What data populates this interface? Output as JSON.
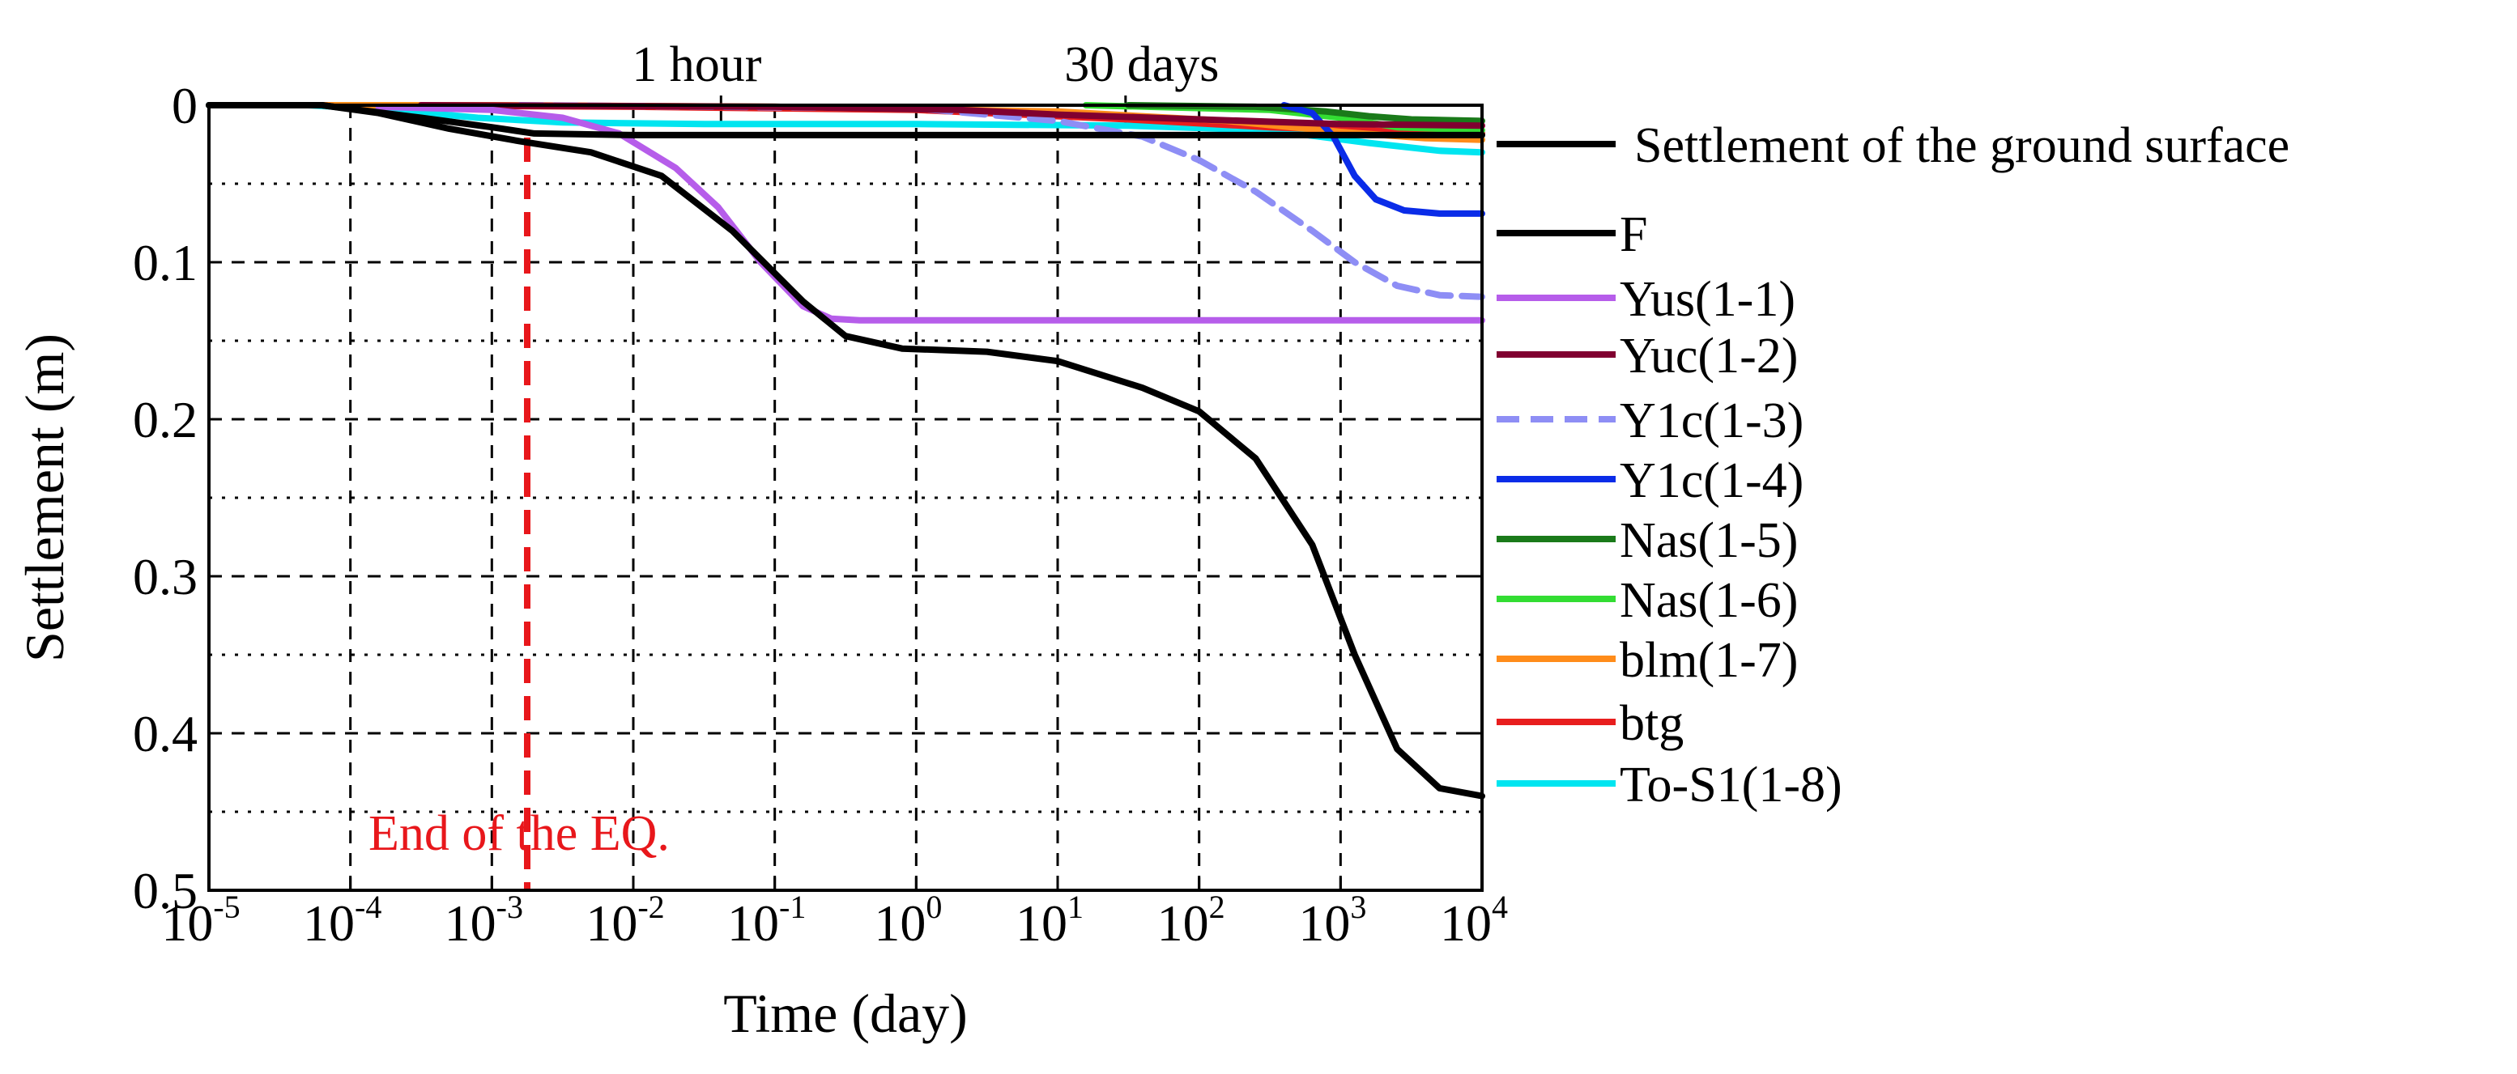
{
  "chart_data": {
    "type": "line",
    "title": "",
    "xlabel": "Time (day)",
    "ylabel": "Settlement (m)",
    "x_scale": "log",
    "x_ticks": [
      {
        "base": "10",
        "exp": "-5"
      },
      {
        "base": "10",
        "exp": "-4"
      },
      {
        "base": "10",
        "exp": "-3"
      },
      {
        "base": "10",
        "exp": "-2"
      },
      {
        "base": "10",
        "exp": "-1"
      },
      {
        "base": "10",
        "exp": "0"
      },
      {
        "base": "10",
        "exp": "1"
      },
      {
        "base": "10",
        "exp": "2"
      },
      {
        "base": "10",
        "exp": "3"
      },
      {
        "base": "10",
        "exp": "4"
      }
    ],
    "xlim_log10": [
      -5,
      4
    ],
    "y_ticks": [
      "0",
      "0.1",
      "0.2",
      "0.3",
      "0.4",
      "0.5"
    ],
    "ylim": [
      0,
      0.5
    ],
    "y_inverted": true,
    "grid": true,
    "legend_position": "right",
    "annotations": [
      {
        "text": "1 hour",
        "x_log10": -1.38
      },
      {
        "text": "30 days",
        "x_log10": 1.48
      },
      {
        "text": "End of the EQ.",
        "x_log10": -2.75
      }
    ],
    "eq_marker": {
      "x_log10": -2.75,
      "color": "#e8171b"
    },
    "hour_marker_log10": -1.38,
    "month_marker_log10": 1.48,
    "series": [
      {
        "name": "Settlement of the ground surface",
        "color": "#000000",
        "dash": "",
        "points": [
          [
            -5,
            0
          ],
          [
            -4.2,
            0
          ],
          [
            -3.8,
            0.005
          ],
          [
            -3.3,
            0.015
          ],
          [
            -2.8,
            0.023
          ],
          [
            -2.3,
            0.03
          ],
          [
            -1.8,
            0.045
          ],
          [
            -1.3,
            0.08
          ],
          [
            -0.8,
            0.125
          ],
          [
            -0.5,
            0.147
          ],
          [
            -0.1,
            0.155
          ],
          [
            0.5,
            0.157
          ],
          [
            1.0,
            0.163
          ],
          [
            1.6,
            0.18
          ],
          [
            2.0,
            0.195
          ],
          [
            2.4,
            0.225
          ],
          [
            2.8,
            0.28
          ],
          [
            3.1,
            0.35
          ],
          [
            3.4,
            0.41
          ],
          [
            3.7,
            0.435
          ],
          [
            4,
            0.44
          ]
        ]
      },
      {
        "name": "F",
        "color": "#000000",
        "dash": "",
        "points": [
          [
            -5,
            0
          ],
          [
            -4.2,
            0
          ],
          [
            -3.5,
            0.008
          ],
          [
            -3.0,
            0.014
          ],
          [
            -2.7,
            0.018
          ],
          [
            -2.0,
            0.019
          ],
          [
            -1.0,
            0.019
          ],
          [
            0,
            0.019
          ],
          [
            1,
            0.019
          ],
          [
            2,
            0.019
          ],
          [
            3,
            0.019
          ],
          [
            4,
            0.019
          ]
        ]
      },
      {
        "name": "Yus(1-1)",
        "color": "#b65dea",
        "dash": "",
        "points": [
          [
            -3.8,
            0.001
          ],
          [
            -3.0,
            0.003
          ],
          [
            -2.5,
            0.008
          ],
          [
            -2.1,
            0.018
          ],
          [
            -1.7,
            0.04
          ],
          [
            -1.4,
            0.065
          ],
          [
            -1.1,
            0.1
          ],
          [
            -0.8,
            0.128
          ],
          [
            -0.6,
            0.136
          ],
          [
            -0.4,
            0.137
          ],
          [
            0.5,
            0.137
          ],
          [
            2,
            0.137
          ],
          [
            4,
            0.137
          ]
        ]
      },
      {
        "name": "Yuc(1-2)",
        "color": "#800030",
        "dash": "",
        "points": [
          [
            -3.5,
            0
          ],
          [
            -1.0,
            0.001
          ],
          [
            0.3,
            0.003
          ],
          [
            1.0,
            0.006
          ],
          [
            2.0,
            0.009
          ],
          [
            3.0,
            0.012
          ],
          [
            4,
            0.013
          ]
        ]
      },
      {
        "name": "Y1c(1-3)",
        "color": "#8e8ef5",
        "dash": "28,14",
        "points": [
          [
            -2.8,
            0
          ],
          [
            0,
            0.002
          ],
          [
            1.0,
            0.01
          ],
          [
            1.6,
            0.02
          ],
          [
            2.0,
            0.035
          ],
          [
            2.4,
            0.055
          ],
          [
            2.8,
            0.08
          ],
          [
            3.1,
            0.1
          ],
          [
            3.4,
            0.115
          ],
          [
            3.7,
            0.121
          ],
          [
            4,
            0.122
          ]
        ]
      },
      {
        "name": "Y1c(1-4)",
        "color": "#0a2ce8",
        "dash": "",
        "points": [
          [
            2.6,
            0
          ],
          [
            2.8,
            0.005
          ],
          [
            2.95,
            0.02
          ],
          [
            3.1,
            0.045
          ],
          [
            3.25,
            0.06
          ],
          [
            3.45,
            0.067
          ],
          [
            3.7,
            0.069
          ],
          [
            4,
            0.069
          ]
        ]
      },
      {
        "name": "Nas(1-5)",
        "color": "#1a7a1a",
        "dash": "",
        "points": [
          [
            1.5,
            0
          ],
          [
            2.4,
            0.001
          ],
          [
            2.9,
            0.004
          ],
          [
            3.2,
            0.007
          ],
          [
            3.5,
            0.009
          ],
          [
            4,
            0.01
          ]
        ]
      },
      {
        "name": "Nas(1-6)",
        "color": "#33dd33",
        "dash": "",
        "points": [
          [
            1.2,
            0
          ],
          [
            2.5,
            0.003
          ],
          [
            3.0,
            0.008
          ],
          [
            3.4,
            0.014
          ],
          [
            4,
            0.016
          ]
        ]
      },
      {
        "name": "blm(1-7)",
        "color": "#ff8c1a",
        "dash": "",
        "points": [
          [
            -4.5,
            0
          ],
          [
            -3,
            0
          ],
          [
            -1,
            0.001
          ],
          [
            1,
            0.004
          ],
          [
            2.2,
            0.01
          ],
          [
            3,
            0.017
          ],
          [
            3.6,
            0.021
          ],
          [
            4,
            0.022
          ]
        ]
      },
      {
        "name": "btg",
        "color": "#e81e1e",
        "dash": "",
        "points": [
          [
            -4,
            0
          ],
          [
            -2,
            0.001
          ],
          [
            0,
            0.003
          ],
          [
            1.5,
            0.009
          ],
          [
            2.5,
            0.014
          ],
          [
            3.5,
            0.017
          ],
          [
            4,
            0.018
          ]
        ]
      },
      {
        "name": "To-S1(1-8)",
        "color": "#00e5f0",
        "dash": "",
        "points": [
          [
            -5,
            0
          ],
          [
            -4.3,
            0
          ],
          [
            -3.7,
            0.003
          ],
          [
            -3.1,
            0.008
          ],
          [
            -2.5,
            0.011
          ],
          [
            -1.5,
            0.012
          ],
          [
            0,
            0.012
          ],
          [
            1.5,
            0.013
          ],
          [
            2.5,
            0.016
          ],
          [
            3.2,
            0.024
          ],
          [
            3.7,
            0.029
          ],
          [
            4,
            0.03
          ]
        ]
      }
    ]
  }
}
